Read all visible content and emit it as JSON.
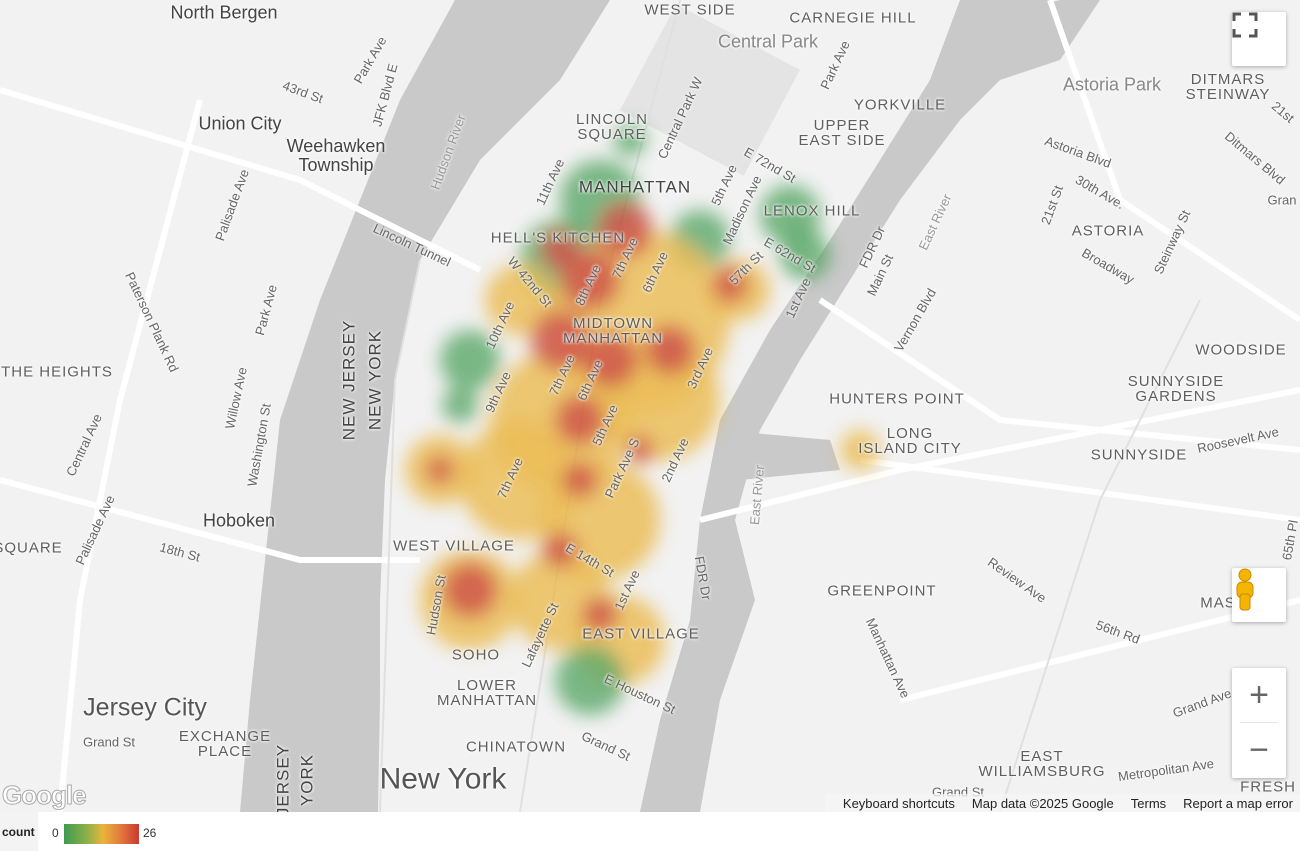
{
  "map": {
    "labels": {
      "north_bergen": "North Bergen",
      "union_city": "Union City",
      "weehawken": "Weehawken\nTownship",
      "hoboken": "Hoboken",
      "jersey_city": "Jersey City",
      "new_york": "New York",
      "the_heights": "THE HEIGHTS",
      "square": "SQUARE",
      "exchange_place": "EXCHANGE\nPLACE",
      "new_jersey": "NEW JERSEY",
      "new_york_state": "NEW YORK",
      "jersey_bottom": "JERSEY",
      "york_bottom": "YORK",
      "west_side": "WEST SIDE",
      "carnegie_hill": "CARNEGIE HILL",
      "central_park": "Central Park",
      "lincoln_square": "LINCOLN\nSQUARE",
      "manhattan": "MANHATTAN",
      "yorkville": "YORKVILLE",
      "upper_east_side": "UPPER\nEAST SIDE",
      "lenox_hill": "LENOX HILL",
      "hells_kitchen": "HELL'S KITCHEN",
      "midtown_manhattan": "MIDTOWN\nMANHATTAN",
      "west_village": "WEST VILLAGE",
      "east_village": "EAST VILLAGE",
      "soho": "SOHO",
      "lower_manhattan": "LOWER\nMANHATTAN",
      "chinatown": "CHINATOWN",
      "astoria_park": "Astoria Park",
      "ditmars_steinway": "DITMARS\nSTEINWAY",
      "astoria": "ASTORIA",
      "woodside": "WOODSIDE",
      "sunnyside_gardens": "SUNNYSIDE\nGARDENS",
      "sunnyside": "SUNNYSIDE",
      "hunters_point": "HUNTERS POINT",
      "long_island_city": "LONG\nISLAND CITY",
      "greenpoint": "GREENPOINT",
      "east_williamsburg": "EAST\nWILLIAMSBURG",
      "maspeth": "MAS",
      "fresh": "FRESH"
    },
    "streets": {
      "park_ave_nj": "Park Ave",
      "jfk_blvd": "JFK Blvd E",
      "st43": "43rd St",
      "lincoln_tunnel": "Lincoln Tunnel",
      "palisade_ave": "Palisade Ave",
      "paterson_plank": "Paterson Plank Rd",
      "park_ave_nj2": "Park Ave",
      "willow_ave": "Willow Ave",
      "washington_st": "Washington St",
      "central_ave": "Central Ave",
      "palisade_ave2": "Palisade Ave",
      "st18": "18th St",
      "grand_st_nj": "Grand St",
      "hudson_river": "Hudson River",
      "ave11": "11th Ave",
      "central_park_w": "Central Park W",
      "ave5": "5th Ave",
      "madison": "Madison Ave",
      "e72": "E 72nd St",
      "park_ave": "Park Ave",
      "w42": "W 42nd St",
      "ave8": "8th Ave",
      "ave7": "7th Ave",
      "ave6": "6th Ave",
      "e62": "E 62nd St",
      "e57": "57th St",
      "ave1": "1st Ave",
      "fdr": "FDR Dr",
      "ave10": "10th Ave",
      "ave9": "9th Ave",
      "ave7b": "7th Ave",
      "ave6b": "6th Ave",
      "ave5b": "5th Ave",
      "ave3": "3rd Ave",
      "ave2": "2nd Ave",
      "park_ave_s": "Park Ave S",
      "ave7c": "7th Ave",
      "e14": "E 14th St",
      "hudson_st": "Hudson St",
      "lafayette": "Lafayette St",
      "ave1b": "1st Ave",
      "fdr2": "FDR Dr",
      "e_houston": "E Houston St",
      "grand_st": "Grand St",
      "east_river": "East River",
      "east_river2": "East River",
      "main_st": "Main St",
      "vernon": "Vernon Blvd",
      "astoria_blvd": "Astoria Blvd",
      "st21": "21st St",
      "ave30": "30th Ave.",
      "broadway": "Broadway",
      "steinway": "Steinway St",
      "ditmars_blvd": "Ditmars Blvd",
      "st21b": "21st",
      "roosevelt": "Roosevelt Ave",
      "review_ave": "Review Ave",
      "rd56": "56th Rd",
      "manhattan_ave": "Manhattan Ave",
      "grand_ave": "Grand Ave",
      "metropolitan": "Metropolitan Ave",
      "grand_st2": "Grand St",
      "st65": "65th Pl",
      "gran": "Gran",
      "park_ave_ues": "Park Ave"
    }
  },
  "controls": {
    "fullscreen_icon": "fullscreen-icon",
    "pegman_icon": "pegman-icon",
    "zoom_in": "+",
    "zoom_out": "−"
  },
  "logo": "Google",
  "attribution": {
    "keyboard_shortcuts": "Keyboard shortcuts",
    "map_data": "Map data ©2025 Google",
    "terms": "Terms",
    "report": "Report a map error"
  },
  "legend": {
    "title": "count",
    "min": "0",
    "max": "26",
    "colors": [
      "#3f9a4f",
      "#eab43c",
      "#c9392f"
    ]
  }
}
